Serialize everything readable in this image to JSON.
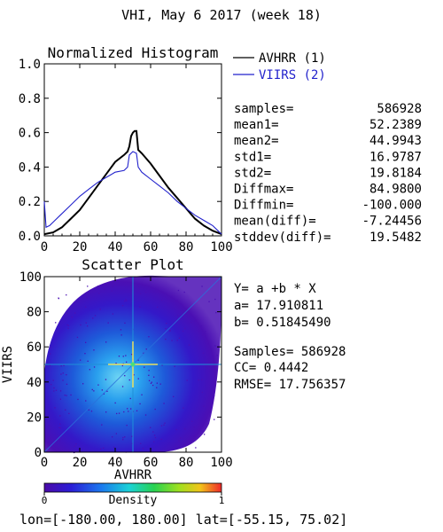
{
  "page_title": "VHI,  May 6 2017 (week 18)",
  "colors": {
    "avhrr": "#000000",
    "viirs": "#2222cc",
    "identity_line": "#2a6fdb",
    "crosshair": "#e8e060"
  },
  "chart_data": [
    {
      "type": "line",
      "title": "Normalized Histogram",
      "xlim": [
        0,
        100
      ],
      "ylim": [
        0,
        1.0
      ],
      "x_ticks": [
        "0",
        "20",
        "40",
        "60",
        "80",
        "100"
      ],
      "y_ticks": [
        "0.0",
        "0.2",
        "0.4",
        "0.6",
        "0.8",
        "1.0"
      ],
      "legend_position": "right",
      "series": [
        {
          "name": "AVHRR (1)",
          "color": "#000000",
          "points": [
            [
              0,
              0.01
            ],
            [
              5,
              0.02
            ],
            [
              10,
              0.05
            ],
            [
              15,
              0.1
            ],
            [
              20,
              0.15
            ],
            [
              25,
              0.22
            ],
            [
              30,
              0.29
            ],
            [
              35,
              0.36
            ],
            [
              40,
              0.43
            ],
            [
              45,
              0.47
            ],
            [
              47,
              0.49
            ],
            [
              48,
              0.52
            ],
            [
              49,
              0.58
            ],
            [
              50,
              0.6
            ],
            [
              51,
              0.61
            ],
            [
              52,
              0.61
            ],
            [
              53,
              0.5
            ],
            [
              55,
              0.48
            ],
            [
              60,
              0.42
            ],
            [
              65,
              0.35
            ],
            [
              70,
              0.28
            ],
            [
              75,
              0.22
            ],
            [
              80,
              0.16
            ],
            [
              85,
              0.1
            ],
            [
              90,
              0.06
            ],
            [
              95,
              0.03
            ],
            [
              100,
              0.01
            ]
          ]
        },
        {
          "name": "VIIRS (2)",
          "color": "#2222cc",
          "points": [
            [
              0,
              0.2
            ],
            [
              1,
              0.05
            ],
            [
              3,
              0.06
            ],
            [
              5,
              0.08
            ],
            [
              10,
              0.13
            ],
            [
              15,
              0.18
            ],
            [
              20,
              0.23
            ],
            [
              25,
              0.27
            ],
            [
              30,
              0.31
            ],
            [
              35,
              0.34
            ],
            [
              40,
              0.37
            ],
            [
              45,
              0.38
            ],
            [
              47,
              0.4
            ],
            [
              48,
              0.47
            ],
            [
              50,
              0.49
            ],
            [
              52,
              0.48
            ],
            [
              53,
              0.4
            ],
            [
              55,
              0.37
            ],
            [
              60,
              0.33
            ],
            [
              65,
              0.29
            ],
            [
              70,
              0.25
            ],
            [
              75,
              0.2
            ],
            [
              80,
              0.16
            ],
            [
              85,
              0.12
            ],
            [
              90,
              0.09
            ],
            [
              95,
              0.06
            ],
            [
              98,
              0.03
            ],
            [
              100,
              0.01
            ]
          ]
        }
      ]
    },
    {
      "type": "scatter",
      "title": "Scatter Plot",
      "xlabel": "AVHRR",
      "ylabel": "VIIRS",
      "xlim": [
        0,
        100
      ],
      "ylim": [
        0,
        100
      ],
      "x_ticks": [
        "0",
        "20",
        "40",
        "60",
        "80",
        "100"
      ],
      "y_ticks": [
        "0",
        "20",
        "40",
        "60",
        "80",
        "100"
      ],
      "density_center": [
        50,
        50
      ],
      "colorbar": {
        "label": "Density",
        "min_label": "0",
        "max_label": "1"
      }
    }
  ],
  "stats": [
    {
      "label": "samples=",
      "value": "586928"
    },
    {
      "label": "mean1=",
      "value": "52.2389"
    },
    {
      "label": "mean2=",
      "value": "44.9943"
    },
    {
      "label": "std1=",
      "value": "16.9787"
    },
    {
      "label": "std2=",
      "value": "19.8184"
    },
    {
      "label": "Diffmax=",
      "value": "84.9800"
    },
    {
      "label": "Diffmin=",
      "value": "-100.000"
    },
    {
      "label": "mean(diff)=",
      "value": "-7.24456"
    },
    {
      "label": "stddev(diff)=",
      "value": "19.5482"
    }
  ],
  "regression": {
    "equation": "Y= a +b * X",
    "a": "a= 17.910811",
    "b": "b= 0.51845490",
    "samples": "Samples= 586928",
    "cc": "CC=  0.4442",
    "rmse": "RMSE= 17.756357"
  },
  "footer": "lon=[-180.00, 180.00] lat=[-55.15, 75.02]"
}
